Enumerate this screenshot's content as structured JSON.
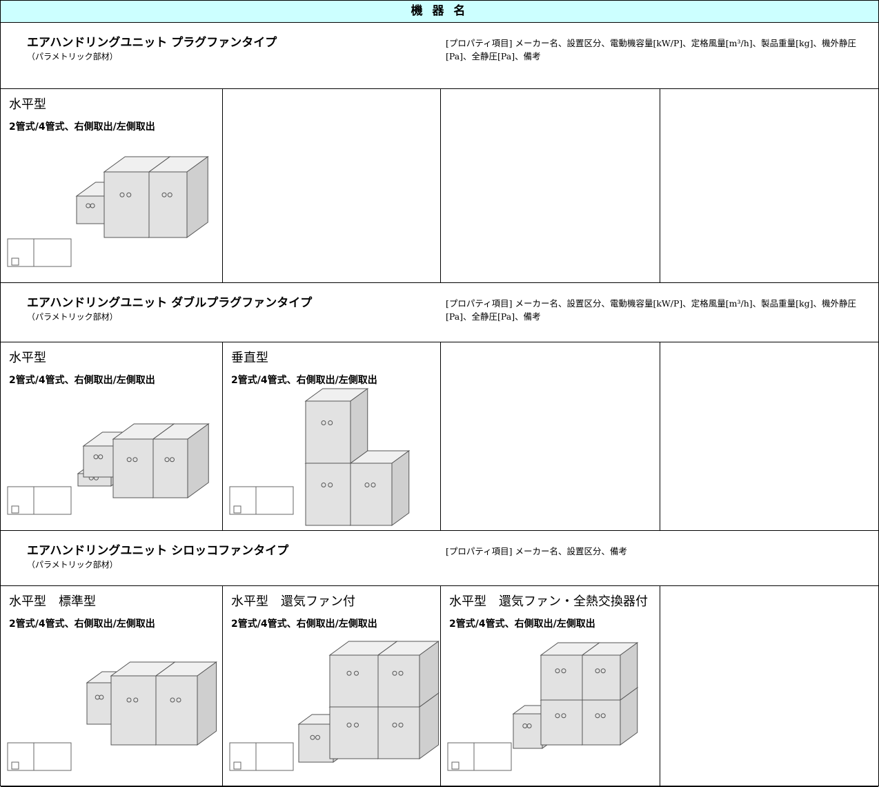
{
  "header": {
    "title": "機 器 名"
  },
  "sections": [
    {
      "title": "エアハンドリングユニット プラグファンタイプ",
      "subtitle": "（パラメトリック部材）",
      "properties": "[プロパティ項目] メーカー名、設置区分、電動機容量[kW/P]、定格風量[m³/h]、製品重量[kg]、機外静圧[Pa]、全静圧[Pa]、備考",
      "items": [
        {
          "name": "水平型",
          "variant": "2管式/4管式、右側取出/左側取出"
        }
      ]
    },
    {
      "title": "エアハンドリングユニット ダブルプラグファンタイプ",
      "subtitle": "（パラメトリック部材）",
      "properties": "[プロパティ項目] メーカー名、設置区分、電動機容量[kW/P]、定格風量[m³/h]、製品重量[kg]、機外静圧[Pa]、全静圧[Pa]、備考",
      "items": [
        {
          "name": "水平型",
          "variant": "2管式/4管式、右側取出/左側取出"
        },
        {
          "name": "垂直型",
          "variant": "2管式/4管式、右側取出/左側取出"
        }
      ]
    },
    {
      "title": "エアハンドリングユニット シロッコファンタイプ",
      "subtitle": "（パラメトリック部材）",
      "properties": "[プロパティ項目] メーカー名、設置区分、備考",
      "items": [
        {
          "name": "水平型　標準型",
          "variant": "2管式/4管式、右側取出/左側取出"
        },
        {
          "name": "水平型　還気ファン付",
          "variant": "2管式/4管式、右側取出/左側取出"
        },
        {
          "name": "水平型　還気ファン・全熱交換器付",
          "variant": "2管式/4管式、右側取出/左側取出"
        }
      ]
    }
  ]
}
